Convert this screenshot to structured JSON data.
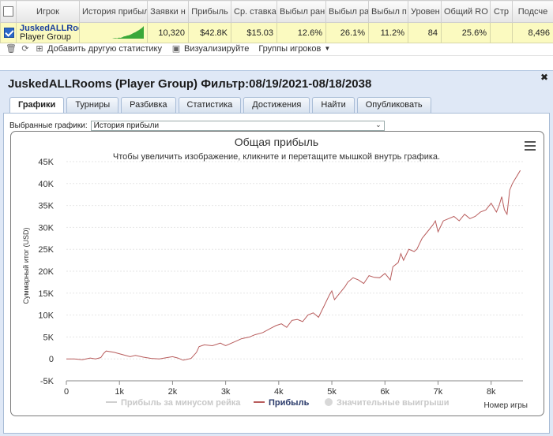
{
  "grid": {
    "headers": [
      "",
      "Игрок",
      "История прибыли",
      "Заявки н",
      "Прибыль",
      "Ср. ставка",
      "Выбыл ран",
      "Выбыл ра",
      "Выбыл п",
      "Уровен",
      "Общий RO",
      "Стр",
      "Подсче"
    ],
    "row": {
      "player_name": "JuskedALLRooms",
      "player_group": "Player Group",
      "values": [
        "10,320",
        "$42.8K",
        "$15.03",
        "12.6%",
        "26.1%",
        "11.2%",
        "84",
        "25.6%",
        "",
        "8,496"
      ]
    },
    "spark": [
      0,
      0.5,
      0.8,
      0.4,
      1.2,
      1.0,
      1.6,
      2.6,
      3.0,
      3.8,
      4.2,
      5.0,
      6.0,
      7.2,
      8.0,
      9.4,
      10.5,
      12.0,
      13.5,
      15.6
    ]
  },
  "toolbar": {
    "add_stat": "Добавить другую статистику",
    "visualize": "Визуализируйте",
    "groups": "Группы игроков"
  },
  "dialog": {
    "title": "JuskedALLRooms (Player Group) Фильтр:08/19/2021-08/18/2038",
    "tabs": [
      "Графики",
      "Турниры",
      "Разбивка",
      "Статистика",
      "Достижения",
      "Найти",
      "Опубликовать"
    ],
    "active_tab": 0,
    "select_label": "Выбранные графики:",
    "select_value": "История прибыли"
  },
  "chart_data": {
    "type": "line",
    "title": "Общая прибыль",
    "subtitle": "Чтобы увеличить изображение, кликните и перетащите мышкой внутрь графика.",
    "xlabel": "Номер игры",
    "ylabel": "Суммарный итог (USD)",
    "xlim": [
      0,
      8600
    ],
    "ylim": [
      -5000,
      45000
    ],
    "x_ticks": [
      0,
      1000,
      2000,
      3000,
      4000,
      5000,
      6000,
      7000,
      8000
    ],
    "x_tick_labels": [
      "0",
      "1k",
      "2k",
      "3k",
      "4k",
      "5k",
      "6k",
      "7k",
      "8k"
    ],
    "y_ticks": [
      -5000,
      0,
      5000,
      10000,
      15000,
      20000,
      25000,
      30000,
      35000,
      40000,
      45000
    ],
    "y_tick_labels": [
      "-5K",
      "0",
      "5K",
      "10K",
      "15K",
      "20K",
      "25K",
      "30K",
      "35K",
      "40K",
      "45K"
    ],
    "grid": true,
    "legend": {
      "placement": "bottom",
      "items": [
        "Прибыль за минусом рейка",
        "Прибыль",
        "Значительные выигрыши"
      ]
    },
    "series": [
      {
        "name": "Прибыль",
        "color": "#b85c5c",
        "x": [
          0,
          150,
          300,
          450,
          550,
          650,
          700,
          750,
          900,
          1050,
          1200,
          1300,
          1450,
          1600,
          1750,
          1900,
          2000,
          2100,
          2200,
          2350,
          2450,
          2500,
          2600,
          2750,
          2900,
          3000,
          3150,
          3300,
          3450,
          3550,
          3700,
          3850,
          3950,
          4050,
          4150,
          4250,
          4350,
          4450,
          4550,
          4650,
          4750,
          4850,
          4950,
          5000,
          5050,
          5150,
          5250,
          5300,
          5400,
          5500,
          5600,
          5700,
          5800,
          5900,
          6000,
          6100,
          6150,
          6250,
          6300,
          6350,
          6450,
          6550,
          6600,
          6700,
          6800,
          6900,
          6950,
          7000,
          7100,
          7200,
          7300,
          7400,
          7500,
          7600,
          7700,
          7800,
          7900,
          8000,
          8050,
          8100,
          8150,
          8200,
          8250,
          8300,
          8350,
          8400,
          8450,
          8500,
          8550
        ],
        "y": [
          0,
          0,
          -200,
          200,
          0,
          300,
          1200,
          1800,
          1500,
          1000,
          500,
          800,
          400,
          100,
          0,
          300,
          500,
          200,
          -300,
          100,
          1500,
          2800,
          3200,
          3000,
          3600,
          3000,
          3800,
          4600,
          5000,
          5500,
          6000,
          7000,
          7600,
          8000,
          7200,
          8800,
          9000,
          8500,
          10000,
          10500,
          9500,
          12000,
          14500,
          15500,
          13500,
          15000,
          16500,
          17500,
          18500,
          18000,
          17200,
          19000,
          18600,
          18500,
          19500,
          18000,
          21000,
          22000,
          24000,
          22500,
          25000,
          24500,
          25000,
          27500,
          29000,
          30500,
          31500,
          29000,
          31500,
          32000,
          32500,
          31500,
          33000,
          32000,
          32500,
          33500,
          34000,
          35500,
          34500,
          33500,
          35000,
          37000,
          34000,
          33000,
          38500,
          40000,
          41000,
          42000,
          43000
        ]
      }
    ]
  }
}
